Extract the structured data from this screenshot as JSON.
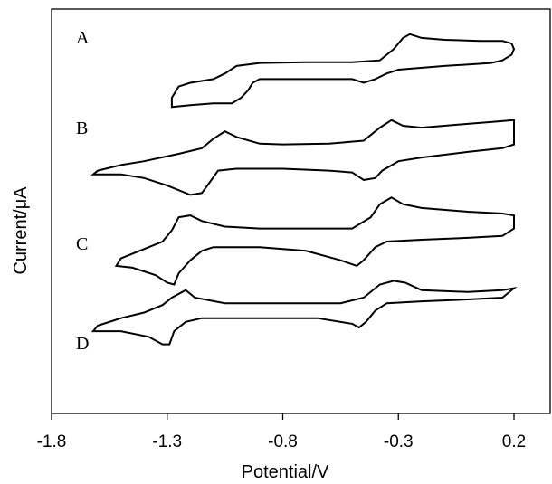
{
  "chart_data": {
    "type": "line",
    "title": "",
    "xlabel": "Potential/V",
    "ylabel": "Current/μA",
    "xlim": [
      -1.8,
      0.3
    ],
    "x_ticks": [
      "-1.8",
      "-1.3",
      "-0.8",
      "-0.3",
      "0.2"
    ],
    "x_tick_values": [
      -1.8,
      -1.3,
      -0.8,
      -0.3,
      0.2
    ],
    "y_ticks_shown": false,
    "grid": false,
    "legend": "none",
    "line_color": "#000000",
    "series": [
      {
        "name": "A",
        "points": [
          [
            0.2,
            9.75
          ],
          [
            0.19,
            9.9
          ],
          [
            0.15,
            9.97
          ],
          [
            0.05,
            9.97
          ],
          [
            -0.1,
            10.0
          ],
          [
            -0.2,
            10.05
          ],
          [
            -0.25,
            10.15
          ],
          [
            -0.28,
            10.05
          ],
          [
            -0.32,
            9.75
          ],
          [
            -0.38,
            9.45
          ],
          [
            -0.5,
            9.4
          ],
          [
            -0.7,
            9.4
          ],
          [
            -0.9,
            9.38
          ],
          [
            -1.0,
            9.3
          ],
          [
            -1.05,
            9.1
          ],
          [
            -1.1,
            8.95
          ],
          [
            -1.2,
            8.85
          ],
          [
            -1.25,
            8.75
          ],
          [
            -1.28,
            8.45
          ],
          [
            -1.28,
            8.2
          ],
          [
            -1.2,
            8.25
          ],
          [
            -1.1,
            8.3
          ],
          [
            -1.02,
            8.3
          ],
          [
            -0.98,
            8.45
          ],
          [
            -0.95,
            8.65
          ],
          [
            -0.93,
            8.85
          ],
          [
            -0.9,
            8.95
          ],
          [
            -0.7,
            8.95
          ],
          [
            -0.5,
            8.95
          ],
          [
            -0.45,
            8.85
          ],
          [
            -0.4,
            8.95
          ],
          [
            -0.35,
            9.1
          ],
          [
            -0.3,
            9.2
          ],
          [
            -0.1,
            9.3
          ],
          [
            0.1,
            9.38
          ],
          [
            0.15,
            9.45
          ],
          [
            0.19,
            9.6
          ],
          [
            0.2,
            9.75
          ]
        ]
      },
      {
        "name": "B",
        "points": [
          [
            0.2,
            7.85
          ],
          [
            0.1,
            7.8
          ],
          [
            0.0,
            7.75
          ],
          [
            -0.2,
            7.65
          ],
          [
            -0.28,
            7.7
          ],
          [
            -0.33,
            7.85
          ],
          [
            -0.38,
            7.65
          ],
          [
            -0.45,
            7.3
          ],
          [
            -0.6,
            7.22
          ],
          [
            -0.8,
            7.2
          ],
          [
            -0.9,
            7.22
          ],
          [
            -1.0,
            7.4
          ],
          [
            -1.05,
            7.55
          ],
          [
            -1.1,
            7.35
          ],
          [
            -1.15,
            7.1
          ],
          [
            -1.25,
            6.95
          ],
          [
            -1.4,
            6.75
          ],
          [
            -1.5,
            6.65
          ],
          [
            -1.6,
            6.5
          ],
          [
            -1.62,
            6.4
          ],
          [
            -1.5,
            6.4
          ],
          [
            -1.4,
            6.3
          ],
          [
            -1.3,
            6.1
          ],
          [
            -1.2,
            5.85
          ],
          [
            -1.15,
            5.9
          ],
          [
            -1.12,
            6.15
          ],
          [
            -1.08,
            6.5
          ],
          [
            -1.0,
            6.55
          ],
          [
            -0.8,
            6.55
          ],
          [
            -0.6,
            6.5
          ],
          [
            -0.5,
            6.45
          ],
          [
            -0.45,
            6.25
          ],
          [
            -0.4,
            6.3
          ],
          [
            -0.37,
            6.5
          ],
          [
            -0.3,
            6.75
          ],
          [
            -0.2,
            6.85
          ],
          [
            0.0,
            7.0
          ],
          [
            0.15,
            7.1
          ],
          [
            0.2,
            7.2
          ],
          [
            0.2,
            7.85
          ]
        ]
      },
      {
        "name": "C",
        "points": [
          [
            0.2,
            5.3
          ],
          [
            0.15,
            5.35
          ],
          [
            0.0,
            5.4
          ],
          [
            -0.2,
            5.5
          ],
          [
            -0.28,
            5.6
          ],
          [
            -0.33,
            5.78
          ],
          [
            -0.38,
            5.6
          ],
          [
            -0.42,
            5.25
          ],
          [
            -0.5,
            4.95
          ],
          [
            -0.7,
            4.95
          ],
          [
            -0.9,
            4.95
          ],
          [
            -1.05,
            5.0
          ],
          [
            -1.15,
            5.15
          ],
          [
            -1.2,
            5.3
          ],
          [
            -1.25,
            5.25
          ],
          [
            -1.28,
            4.9
          ],
          [
            -1.32,
            4.6
          ],
          [
            -1.4,
            4.4
          ],
          [
            -1.5,
            4.15
          ],
          [
            -1.52,
            3.95
          ],
          [
            -1.45,
            3.9
          ],
          [
            -1.35,
            3.7
          ],
          [
            -1.3,
            3.5
          ],
          [
            -1.27,
            3.45
          ],
          [
            -1.25,
            3.75
          ],
          [
            -1.2,
            4.1
          ],
          [
            -1.15,
            4.35
          ],
          [
            -1.1,
            4.45
          ],
          [
            -0.9,
            4.45
          ],
          [
            -0.7,
            4.35
          ],
          [
            -0.55,
            4.1
          ],
          [
            -0.48,
            3.95
          ],
          [
            -0.45,
            4.1
          ],
          [
            -0.4,
            4.45
          ],
          [
            -0.35,
            4.6
          ],
          [
            -0.2,
            4.65
          ],
          [
            0.0,
            4.7
          ],
          [
            0.15,
            4.75
          ],
          [
            0.2,
            4.95
          ],
          [
            0.2,
            5.3
          ]
        ]
      },
      {
        "name": "D",
        "points": [
          [
            0.2,
            3.35
          ],
          [
            0.15,
            3.3
          ],
          [
            0.0,
            3.25
          ],
          [
            -0.2,
            3.3
          ],
          [
            -0.27,
            3.5
          ],
          [
            -0.32,
            3.55
          ],
          [
            -0.38,
            3.45
          ],
          [
            -0.45,
            3.1
          ],
          [
            -0.55,
            2.95
          ],
          [
            -0.8,
            2.95
          ],
          [
            -1.05,
            2.95
          ],
          [
            -1.18,
            3.1
          ],
          [
            -1.22,
            3.3
          ],
          [
            -1.28,
            3.1
          ],
          [
            -1.32,
            2.9
          ],
          [
            -1.4,
            2.7
          ],
          [
            -1.5,
            2.55
          ],
          [
            -1.6,
            2.35
          ],
          [
            -1.62,
            2.2
          ],
          [
            -1.5,
            2.2
          ],
          [
            -1.38,
            2.05
          ],
          [
            -1.32,
            1.85
          ],
          [
            -1.29,
            1.85
          ],
          [
            -1.27,
            2.2
          ],
          [
            -1.22,
            2.45
          ],
          [
            -1.15,
            2.55
          ],
          [
            -0.9,
            2.55
          ],
          [
            -0.65,
            2.55
          ],
          [
            -0.5,
            2.4
          ],
          [
            -0.47,
            2.3
          ],
          [
            -0.44,
            2.45
          ],
          [
            -0.4,
            2.75
          ],
          [
            -0.35,
            2.95
          ],
          [
            -0.2,
            3.0
          ],
          [
            0.0,
            3.05
          ],
          [
            0.15,
            3.1
          ],
          [
            0.2,
            3.35
          ]
        ]
      }
    ]
  }
}
